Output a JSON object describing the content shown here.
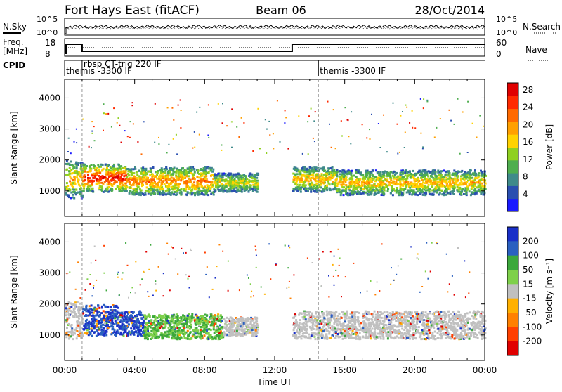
{
  "header": {
    "title": "Fort Hays East (fitACF)",
    "beam": "Beam 06",
    "date": "28/Oct/2014"
  },
  "top_panels": {
    "nsky_label": "N.Sky",
    "nsky_ticks": [
      "10^5",
      "10^0"
    ],
    "nsearch_label": "N.Search",
    "nsearch_ticks": [
      "10^5",
      "10^0"
    ],
    "freq_label": "Freq.",
    "freq_unit": "[MHz]",
    "freq_ticks": [
      "18",
      "8"
    ],
    "nave_label": "Nave",
    "nave_ticks": [
      "60",
      "0"
    ],
    "cpid_label": "CPID",
    "cpid_segments": [
      {
        "label": "themis -3300 IF",
        "start_hr": 0,
        "end_hr": 1
      },
      {
        "label": "rbsp CT-trig 220 IF",
        "start_hr": 1,
        "end_hr": 13
      },
      {
        "label": "themis -3300 IF",
        "start_hr": 14.5,
        "end_hr": 24
      }
    ]
  },
  "chart_data": [
    {
      "type": "heatmap",
      "name": "power",
      "xlabel": "",
      "ylabel": "Slant Range [km]",
      "xlim_hours": [
        0,
        24
      ],
      "ylim_km": [
        180,
        4600
      ],
      "yticks": [
        1000,
        2000,
        3000,
        4000
      ],
      "colorbar": {
        "label": "Power [dB]",
        "ticks": [
          "4",
          "8",
          "12",
          "16",
          "20",
          "24",
          "28"
        ],
        "colors": [
          "#1a1aff",
          "#2a4fb0",
          "#3f8a8a",
          "#4fae4f",
          "#8fd020",
          "#ffd200",
          "#ffa000",
          "#ff6a00",
          "#ff2a00",
          "#e00000"
        ]
      },
      "echo_bands": [
        {
          "t0": 0.0,
          "t1": 1.0,
          "r0": 800,
          "r1": 2000,
          "level": 6
        },
        {
          "t0": 1.0,
          "t1": 3.5,
          "r0": 1000,
          "r1": 1900,
          "level": 9
        },
        {
          "t0": 3.5,
          "t1": 8.5,
          "r0": 900,
          "r1": 1800,
          "level": 7
        },
        {
          "t0": 8.5,
          "t1": 11.0,
          "r0": 1000,
          "r1": 1600,
          "level": 5
        },
        {
          "t0": 13.0,
          "t1": 15.5,
          "r0": 1000,
          "r1": 1800,
          "level": 6
        },
        {
          "t0": 15.5,
          "t1": 24.0,
          "r0": 900,
          "r1": 1700,
          "level": 6
        }
      ]
    },
    {
      "type": "heatmap",
      "name": "velocity",
      "xlabel": "Time UT",
      "ylabel": "Slant Range [km]",
      "xlim_hours": [
        0,
        24
      ],
      "ylim_km": [
        180,
        4600
      ],
      "yticks": [
        1000,
        2000,
        3000,
        4000
      ],
      "xticks": [
        "00:00",
        "04:00",
        "08:00",
        "12:00",
        "16:00",
        "20:00",
        "00:00"
      ],
      "colorbar": {
        "label": "Velocity [m s⁻¹]",
        "ticks": [
          "200",
          "100",
          "50",
          "15",
          "-15",
          "-50",
          "-100",
          "-200"
        ],
        "colors": [
          "#1a30c8",
          "#2a60c0",
          "#3ca83c",
          "#7ed04a",
          "#c0c0c0",
          "#ffb000",
          "#ff8000",
          "#ff4000",
          "#e00000"
        ]
      },
      "echo_bands": [
        {
          "t0": 0.0,
          "t1": 1.0,
          "r0": 900,
          "r1": 2100,
          "vel": "gray"
        },
        {
          "t0": 1.0,
          "t1": 3.0,
          "r0": 1000,
          "r1": 2000,
          "vel": "blue"
        },
        {
          "t0": 3.0,
          "t1": 4.5,
          "r0": 1000,
          "r1": 1800,
          "vel": "blue"
        },
        {
          "t0": 4.5,
          "t1": 9.0,
          "r0": 900,
          "r1": 1700,
          "vel": "green"
        },
        {
          "t0": 9.0,
          "t1": 11.0,
          "r0": 1000,
          "r1": 1600,
          "vel": "gray"
        },
        {
          "t0": 13.0,
          "t1": 24.0,
          "r0": 900,
          "r1": 1800,
          "vel": "gray"
        }
      ]
    }
  ]
}
